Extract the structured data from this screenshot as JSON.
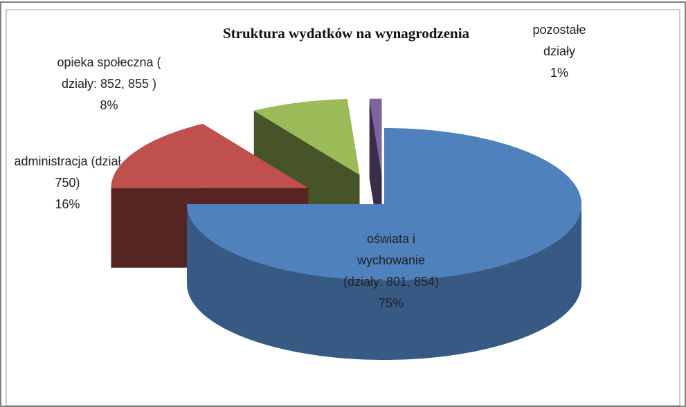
{
  "chart_data": {
    "type": "pie",
    "title": "Struktura  wydatków na wynagrodzenia",
    "categories": [
      "oświata i wychowanie (działy: 801, 854)",
      "administracja (dział 750)",
      "opieka społeczna ( działy: 852, 855 )",
      "pozostałe działy"
    ],
    "values": [
      75,
      16,
      8,
      1
    ],
    "value_labels": [
      "75%",
      "16%",
      "8%",
      "1%"
    ],
    "colors": [
      "#4f81bd",
      "#c0504d",
      "#9bbb59",
      "#8064a2"
    ]
  }
}
